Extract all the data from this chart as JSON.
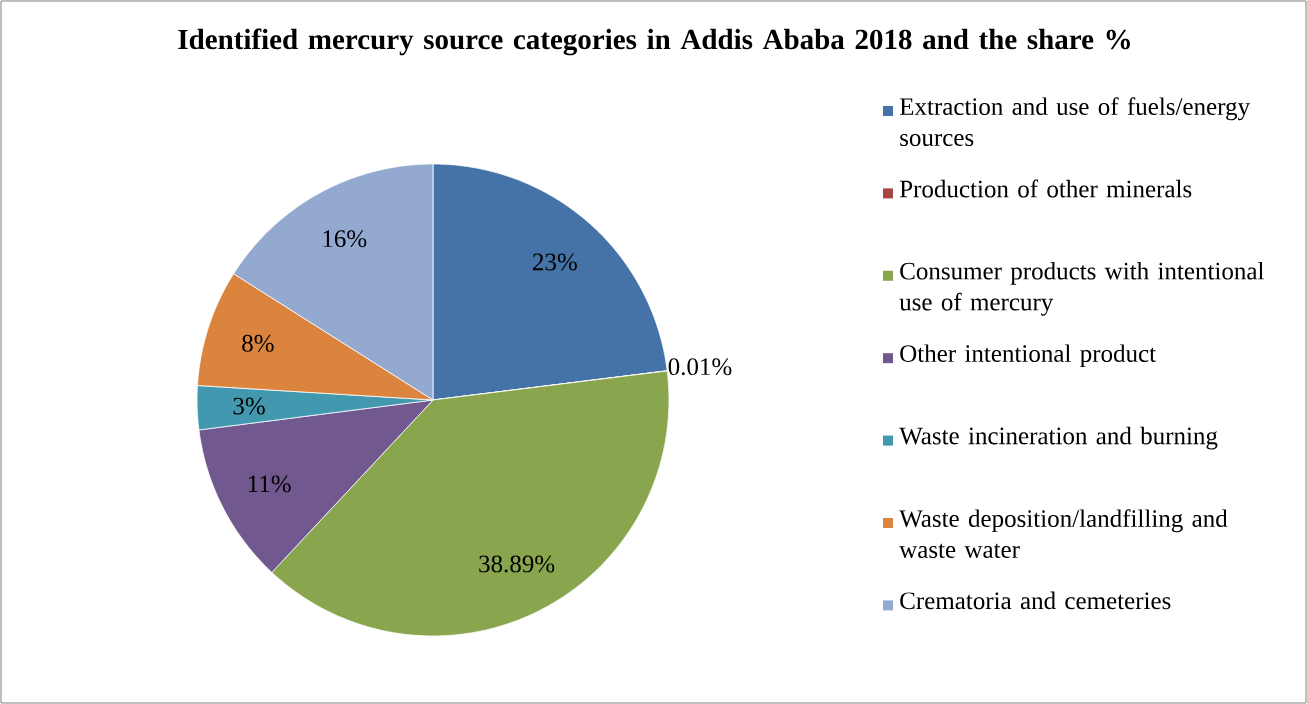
{
  "chart_data": {
    "type": "pie",
    "title": "Identified mercury source categories  in Addis Ababa 2018 and the share %",
    "categories": [
      "Extraction and use of fuels/energy sources",
      "Production of other minerals",
      "Consumer products with intentional use of mercury",
      "Other intentional product",
      "Waste incineration and burning",
      "Waste deposition/landfilling and waste water",
      "Crematoria and cemeteries"
    ],
    "values": [
      23,
      0.01,
      38.89,
      11,
      3,
      8,
      16
    ],
    "colors": [
      "#4572a7",
      "#aa4643",
      "#89a54e",
      "#71588f",
      "#4198af",
      "#db843d",
      "#93a9cf"
    ],
    "value_labels": [
      "23%",
      "0.01%",
      "38.89%",
      "11%",
      "3%",
      "8%",
      "16%"
    ],
    "legend": "right"
  }
}
